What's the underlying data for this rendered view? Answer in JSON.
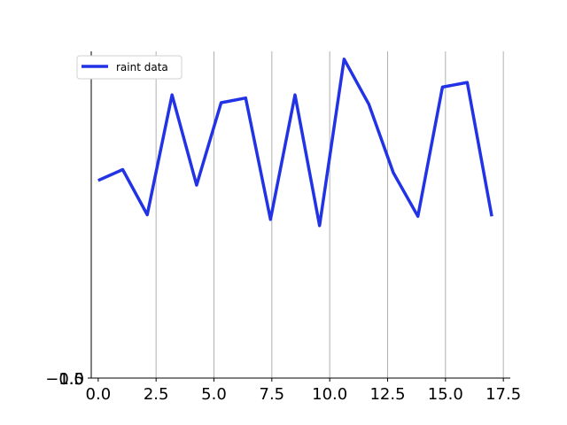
{
  "chart_data": {
    "type": "line",
    "title": "",
    "xlabel": "",
    "ylabel": "",
    "xlim": [
      -0.3,
      17.8
    ],
    "ylim": [
      -1.03,
      1.07
    ],
    "xticks": [
      "0.0",
      "2.5",
      "5.0",
      "7.5",
      "10.0",
      "12.5",
      "15.0",
      "17.5"
    ],
    "xtick_values": [
      0,
      2.5,
      5,
      7.5,
      10,
      12.5,
      15,
      17.5
    ],
    "yticks": [
      "−1.0",
      "0.5",
      "1.0"
    ],
    "grid": "x-only",
    "legend_position": "upper-left",
    "series": [
      {
        "name": "raint data",
        "color": "#2233e6",
        "x": [
          0,
          1.06,
          2.12,
          3.19,
          4.25,
          5.31,
          6.37,
          7.44,
          8.5,
          9.56,
          10.62,
          11.69,
          12.75,
          13.81,
          14.87,
          15.94,
          17.0
        ],
        "y": [
          0.24,
          0.31,
          0.02,
          0.79,
          0.21,
          0.74,
          0.77,
          -0.01,
          0.79,
          -0.05,
          1.02,
          0.73,
          0.29,
          0.01,
          0.84,
          0.87,
          0.01
        ]
      }
    ]
  }
}
